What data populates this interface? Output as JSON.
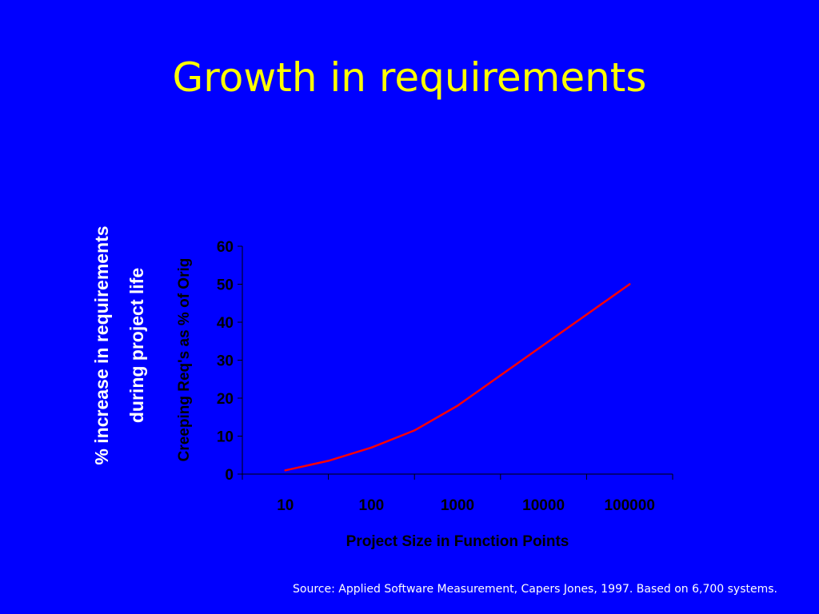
{
  "slide": {
    "title": "Growth in requirements",
    "side_label_line1": "% increase in  requirements",
    "side_label_line2": "during project life",
    "source": "Source: Applied Software Measurement, Capers Jones, 1997. Based on 6,700 systems."
  },
  "colors": {
    "background": "#0000ff",
    "title": "#ffff00",
    "axis_text": "#000000",
    "series": "#ff0000"
  },
  "chart_data": {
    "type": "line",
    "title": "",
    "xlabel": "Project Size in Function Points",
    "ylabel": "Creeping Req's as % of Orig",
    "x_scale": "log",
    "categories": [
      "10",
      "100",
      "1000",
      "10000",
      "100000"
    ],
    "y_ticks": [
      0,
      10,
      20,
      30,
      40,
      50,
      60
    ],
    "ylim": [
      0,
      60
    ],
    "grid": false,
    "series": [
      {
        "color": "#ff0000",
        "points": [
          {
            "x": 10,
            "y": 1
          },
          {
            "x": 31.6,
            "y": 3.5
          },
          {
            "x": 100,
            "y": 7
          },
          {
            "x": 316,
            "y": 11.5
          },
          {
            "x": 1000,
            "y": 18
          },
          {
            "x": 3162,
            "y": 26
          },
          {
            "x": 10000,
            "y": 34
          },
          {
            "x": 31623,
            "y": 42
          },
          {
            "x": 100000,
            "y": 50
          }
        ]
      }
    ]
  }
}
